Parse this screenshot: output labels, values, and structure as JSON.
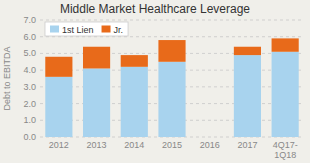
{
  "chart_data": {
    "type": "bar",
    "stacked": true,
    "title": "Middle Market Healthcare Leverage",
    "y_label": "Debt to EBITDA",
    "categories": [
      "2012",
      "2013",
      "2014",
      "2015",
      "2016",
      "2017",
      "4Q17-\n1Q18"
    ],
    "series": [
      {
        "name": "1st Lien",
        "color": "#a8d3ee",
        "values": [
          3.6,
          4.1,
          4.2,
          4.5,
          0.0,
          4.9,
          5.1
        ]
      },
      {
        "name": "Jr.",
        "color": "#e86a1a",
        "values": [
          1.2,
          1.3,
          0.7,
          1.3,
          0.0,
          0.5,
          0.8
        ]
      }
    ],
    "ylim": [
      0.0,
      7.0
    ],
    "yticks": [
      {
        "value": 0.0,
        "label": "0.0"
      },
      {
        "value": 1.0,
        "label": "1.0"
      },
      {
        "value": 2.0,
        "label": "2.0"
      },
      {
        "value": 3.0,
        "label": "3.0"
      },
      {
        "value": 4.0,
        "label": "4.0"
      },
      {
        "value": 5.0,
        "label": "5.0"
      },
      {
        "value": 6.0,
        "label": "6.0"
      },
      {
        "value": 7.0,
        "label": "7.0"
      }
    ],
    "grid": true,
    "legend": "upper left"
  }
}
